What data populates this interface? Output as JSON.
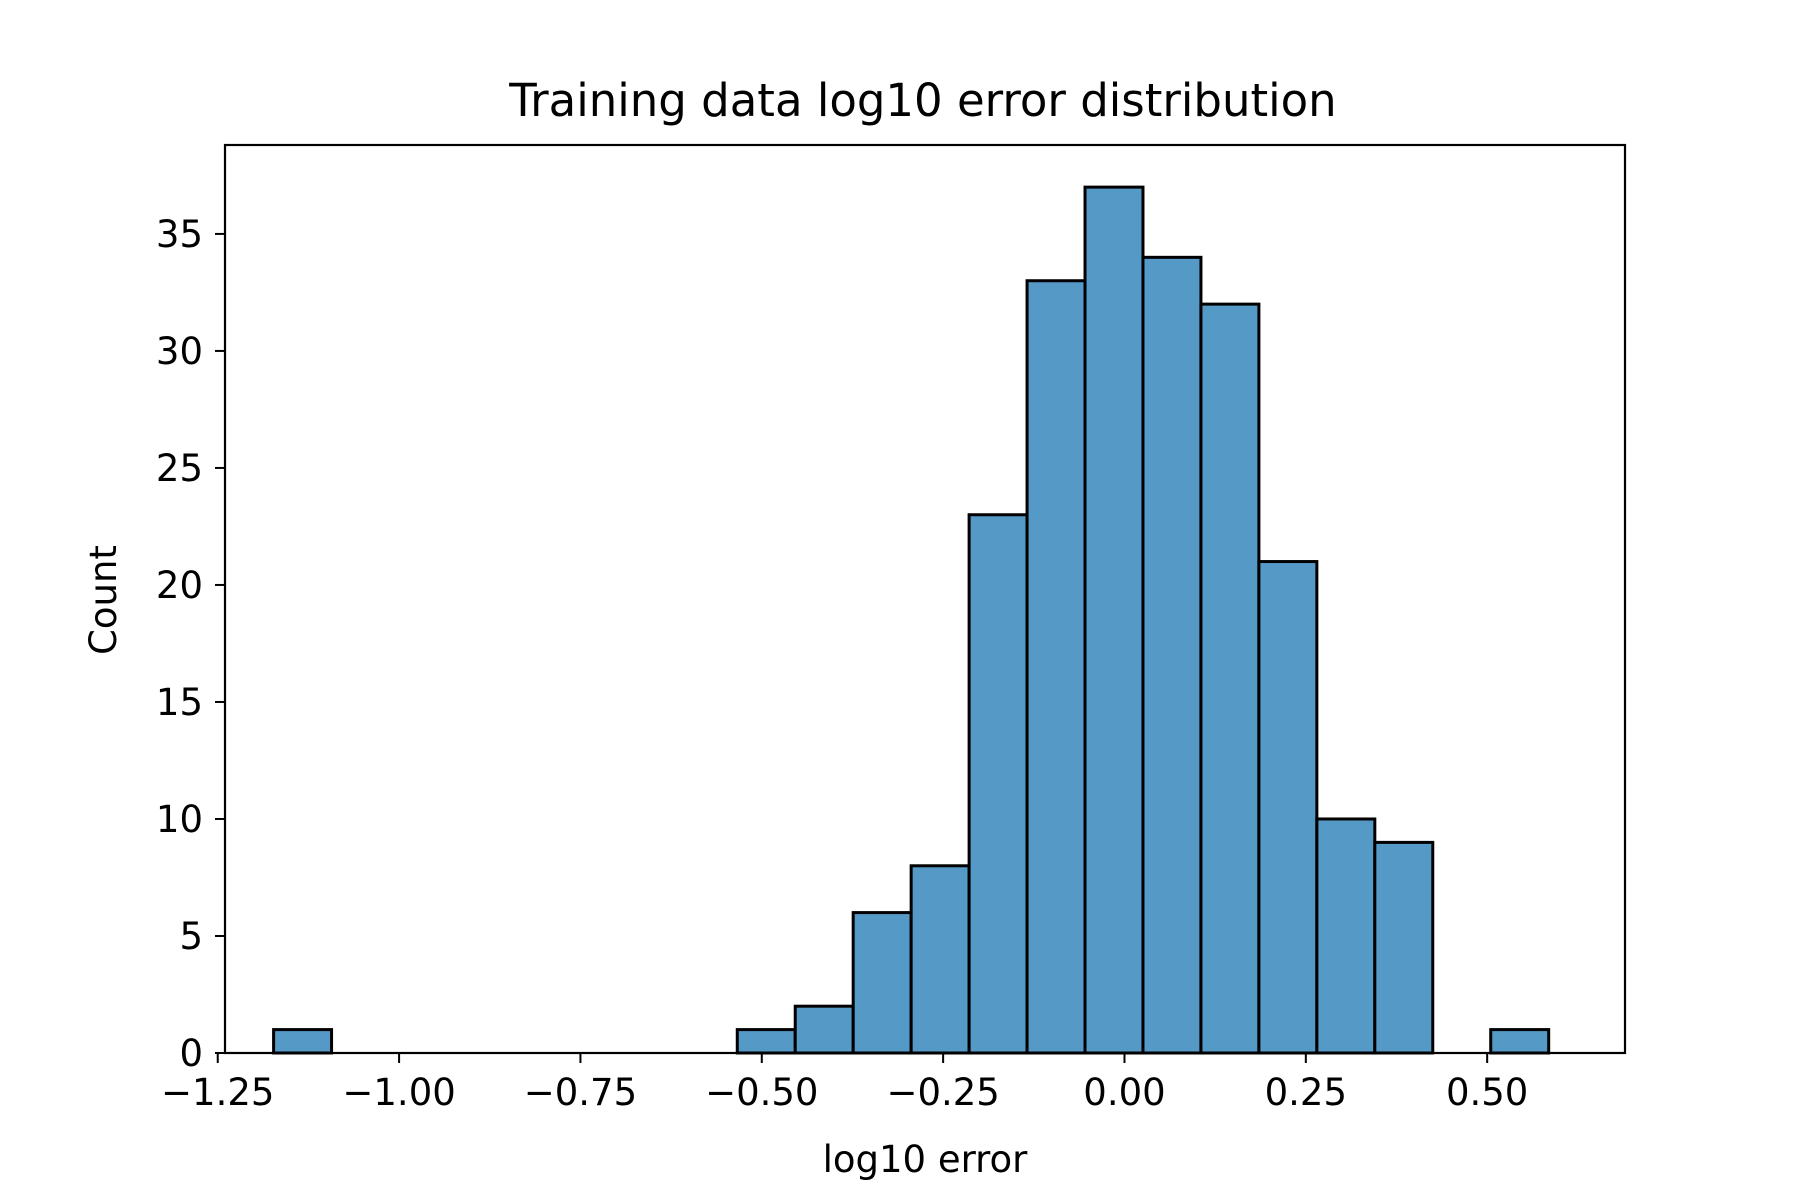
{
  "chart_data": {
    "type": "bar",
    "subtype": "histogram",
    "title": "Training data log10 error distribution",
    "xlabel": "log10 error",
    "ylabel": "Count",
    "xlim": [
      -1.24,
      0.69
    ],
    "ylim": [
      0,
      38.8
    ],
    "xticks": [
      -1.25,
      -1.0,
      -0.75,
      -0.5,
      -0.25,
      0.0,
      0.25,
      0.5
    ],
    "xtick_labels": [
      "−1.25",
      "−1.00",
      "−0.75",
      "−0.50",
      "−0.25",
      "0.00",
      "0.25",
      "0.50"
    ],
    "yticks": [
      0,
      5,
      10,
      15,
      20,
      25,
      30,
      35
    ],
    "ytick_labels": [
      "0",
      "5",
      "10",
      "15",
      "20",
      "25",
      "30",
      "35"
    ],
    "bin_start": -1.173,
    "bin_width": 0.0799,
    "counts": [
      1,
      0,
      0,
      0,
      0,
      0,
      0,
      0,
      1,
      2,
      6,
      8,
      23,
      33,
      37,
      34,
      32,
      21,
      10,
      9,
      0,
      1
    ],
    "grid": false,
    "bar_color": "#5599c7",
    "edge_color": "#000000"
  }
}
